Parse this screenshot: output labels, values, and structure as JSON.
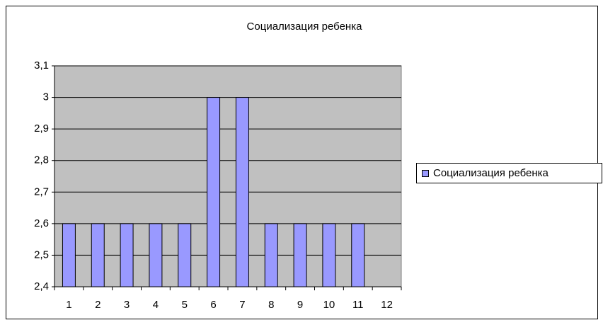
{
  "chart_data": {
    "type": "bar",
    "title": "Социализация ребенка",
    "categories": [
      "1",
      "2",
      "3",
      "4",
      "5",
      "6",
      "7",
      "8",
      "9",
      "10",
      "11",
      "12"
    ],
    "series": [
      {
        "name": "Социализация ребенка",
        "color": "#9999ff",
        "values": [
          2.6,
          2.6,
          2.6,
          2.6,
          2.6,
          3,
          3,
          2.6,
          2.6,
          2.6,
          2.6,
          null
        ]
      }
    ],
    "ylim": [
      2.4,
      3.1
    ],
    "yticks": [
      {
        "value": 2.4,
        "label": "2,4"
      },
      {
        "value": 2.5,
        "label": "2,5"
      },
      {
        "value": 2.6,
        "label": "2,6"
      },
      {
        "value": 2.7,
        "label": "2,7"
      },
      {
        "value": 2.8,
        "label": "2,8"
      },
      {
        "value": 2.9,
        "label": "2,9"
      },
      3,
      {
        "value": 3.1,
        "label": "3,1"
      }
    ],
    "grid": true,
    "legend": "right"
  }
}
